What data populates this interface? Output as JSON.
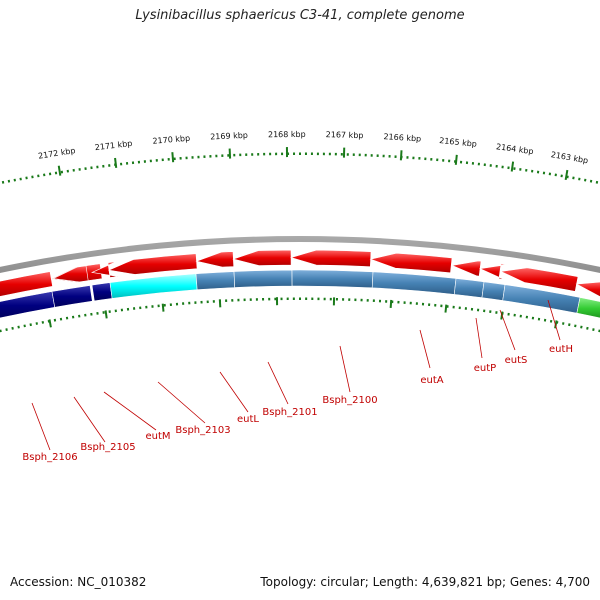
{
  "title": "Lysinibacillus sphaericus C3-41, complete genome",
  "footer": {
    "accession": "Accession: NC_010382",
    "topology": "Topology: circular; Length: 4,639,821 bp; Genes: 4,700"
  },
  "ruler_labels": [
    "2163 kbp",
    "2164 kbp",
    "2165 kbp",
    "2166 kbp",
    "2167 kbp",
    "2168 kbp",
    "2169 kbp",
    "2170 kbp",
    "2171 kbp",
    "2172 kbp"
  ],
  "gene_labels": [
    "eutH",
    "eutS",
    "eutP",
    "eutA",
    "Bsph_2100",
    "Bsph_2101",
    "eutL",
    "Bsph_2103",
    "eutM",
    "Bsph_2105",
    "Bsph_2106"
  ],
  "colors": {
    "forward_gene": "#e60000",
    "reverse_gene": "#4682b4",
    "dark_gene": "#000080",
    "cyan_gene": "#00ffff",
    "green_gene": "#33cc33",
    "backbone": "#808080",
    "ticks": "#1a7a1a",
    "labels": "#c00000"
  }
}
